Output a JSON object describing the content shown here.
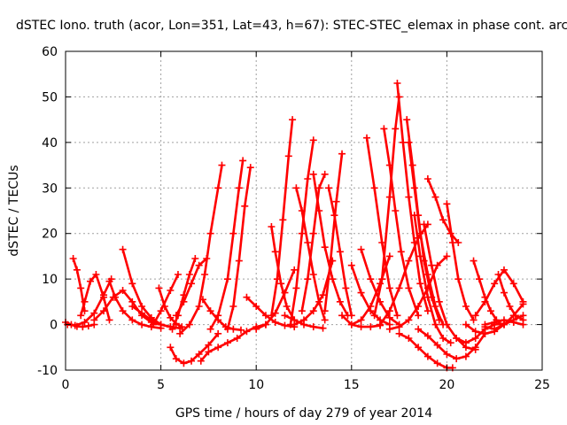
{
  "chart_data": {
    "type": "scatter",
    "title": "dSTEC Iono. truth (acor, Lon=351, Lat=43, h=67): STEC-STEC_elemax in phase cont. arc",
    "xlabel": "GPS time / hours of day 279 of year 2014",
    "ylabel": "dSTEC  / TECUs",
    "xlim": [
      0,
      25
    ],
    "ylim": [
      -10,
      60
    ],
    "xticks": [
      0,
      5,
      10,
      15,
      20,
      25
    ],
    "yticks": [
      -10,
      0,
      10,
      20,
      30,
      40,
      50,
      60
    ],
    "grid": true,
    "marker": "+",
    "color": "#ff0000",
    "series": [
      {
        "x": [
          0.0,
          0.3,
          0.6,
          0.9,
          1.2,
          1.5
        ],
        "y": [
          0.5,
          0.0,
          -0.4,
          -0.5,
          -0.3,
          0.0
        ]
      },
      {
        "x": [
          0.4,
          0.6,
          0.8,
          1.0
        ],
        "y": [
          14.5,
          12.0,
          8.0,
          3.0
        ]
      },
      {
        "x": [
          0.8,
          1.0,
          1.3,
          1.6,
          2.0,
          2.3
        ],
        "y": [
          2.0,
          5.0,
          9.5,
          11.0,
          6.0,
          1.0
        ]
      },
      {
        "x": [
          0.1,
          0.5,
          1.0,
          1.5,
          2.0,
          2.4
        ],
        "y": [
          0.0,
          -0.2,
          0.5,
          2.5,
          6.5,
          10.0
        ]
      },
      {
        "x": [
          1.5,
          2.0,
          2.5,
          3.0,
          3.5,
          4.0,
          4.5,
          5.0
        ],
        "y": [
          1.0,
          3.0,
          6.0,
          7.5,
          5.0,
          2.0,
          0.5,
          0.0
        ]
      },
      {
        "x": [
          2.3,
          2.6,
          3.0,
          3.5,
          4.0,
          4.5,
          5.0
        ],
        "y": [
          9.5,
          6.0,
          3.0,
          1.0,
          0.0,
          -0.5,
          -0.8
        ]
      },
      {
        "x": [
          3.0,
          3.5,
          4.0,
          4.5,
          5.0,
          5.5,
          6.0
        ],
        "y": [
          16.5,
          9.0,
          4.0,
          1.5,
          0.0,
          -0.5,
          -0.8
        ]
      },
      {
        "x": [
          3.5,
          4.0,
          4.5,
          5.0,
          5.5
        ],
        "y": [
          4.0,
          2.5,
          1.0,
          0.0,
          -0.5
        ]
      },
      {
        "x": [
          4.9,
          5.2,
          5.5,
          5.8,
          6.1
        ],
        "y": [
          8.0,
          4.0,
          1.5,
          0.2,
          -0.5
        ]
      },
      {
        "x": [
          4.6,
          5.0,
          5.5,
          5.9
        ],
        "y": [
          0.0,
          3.0,
          7.5,
          11.0
        ]
      },
      {
        "x": [
          5.6,
          5.9,
          6.2,
          6.5,
          6.8
        ],
        "y": [
          -1.0,
          2.0,
          6.5,
          11.0,
          14.5
        ]
      },
      {
        "x": [
          5.5,
          5.8,
          6.2,
          6.6,
          7.0,
          7.5,
          8.0
        ],
        "y": [
          -5.0,
          -7.5,
          -8.5,
          -8.0,
          -6.5,
          -4.5,
          -2.0
        ]
      },
      {
        "x": [
          7.1,
          7.5,
          8.0,
          8.5,
          9.0,
          9.5,
          10.0,
          10.5
        ],
        "y": [
          -8.0,
          -6.0,
          -5.0,
          -4.0,
          -3.0,
          -1.5,
          -0.5,
          0.0
        ]
      },
      {
        "x": [
          6.0,
          6.5,
          7.0,
          7.3,
          7.6,
          8.0,
          8.2
        ],
        "y": [
          -2.0,
          0.0,
          4.0,
          11.0,
          20.0,
          30.0,
          35.0
        ]
      },
      {
        "x": [
          5.8,
          6.2,
          6.6,
          7.0,
          7.4
        ],
        "y": [
          2.0,
          5.0,
          9.0,
          13.0,
          14.5
        ]
      },
      {
        "x": [
          7.2,
          7.6,
          8.0,
          8.4,
          8.8,
          9.2
        ],
        "y": [
          5.5,
          3.0,
          1.0,
          -0.5,
          -1.0,
          -1.2
        ]
      },
      {
        "x": [
          7.6,
          8.0,
          8.5,
          8.8,
          9.1,
          9.3
        ],
        "y": [
          -1.0,
          2.0,
          10.0,
          20.0,
          30.0,
          36.0
        ]
      },
      {
        "x": [
          8.5,
          8.8,
          9.1,
          9.4,
          9.7
        ],
        "y": [
          -1.0,
          4.0,
          14.0,
          26.0,
          34.5
        ]
      },
      {
        "x": [
          9.5,
          10.0,
          10.5,
          11.0,
          11.5,
          12.0
        ],
        "y": [
          6.0,
          4.0,
          2.0,
          0.5,
          -0.2,
          -0.5
        ]
      },
      {
        "x": [
          10.0,
          10.5,
          11.0,
          11.5,
          12.0
        ],
        "y": [
          -1.0,
          0.0,
          2.5,
          7.0,
          12.0
        ]
      },
      {
        "x": [
          10.8,
          11.0,
          11.3,
          11.6,
          12.0
        ],
        "y": [
          21.5,
          16.0,
          9.0,
          4.0,
          1.0
        ]
      },
      {
        "x": [
          10.8,
          11.1,
          11.4,
          11.7,
          11.9
        ],
        "y": [
          2.0,
          10.0,
          23.0,
          37.0,
          45.0
        ]
      },
      {
        "x": [
          11.5,
          12.0,
          12.5,
          13.0,
          13.5
        ],
        "y": [
          2.0,
          1.0,
          0.0,
          -0.5,
          -0.8
        ]
      },
      {
        "x": [
          11.8,
          12.1,
          12.4,
          12.7,
          13.0
        ],
        "y": [
          0.0,
          8.0,
          20.0,
          32.0,
          40.5
        ]
      },
      {
        "x": [
          12.1,
          12.4,
          12.7,
          13.0,
          13.3,
          13.6
        ],
        "y": [
          30.0,
          25.0,
          18.0,
          11.0,
          5.0,
          1.0
        ]
      },
      {
        "x": [
          12.4,
          12.7,
          13.0,
          13.3,
          13.6
        ],
        "y": [
          3.0,
          10.0,
          20.0,
          30.0,
          33.0
        ]
      },
      {
        "x": [
          13.0,
          13.3,
          13.6,
          14.0,
          14.4,
          14.8
        ],
        "y": [
          33.0,
          25.0,
          17.0,
          10.0,
          5.0,
          2.0
        ]
      },
      {
        "x": [
          12.0,
          12.5,
          13.0,
          13.5,
          14.0
        ],
        "y": [
          0.0,
          1.0,
          3.0,
          6.5,
          14.0
        ]
      },
      {
        "x": [
          13.6,
          13.9,
          14.2,
          14.5
        ],
        "y": [
          3.0,
          14.0,
          27.0,
          37.5
        ]
      },
      {
        "x": [
          13.8,
          14.1,
          14.4,
          14.7,
          15.0
        ],
        "y": [
          30.0,
          24.0,
          16.0,
          8.0,
          2.0
        ]
      },
      {
        "x": [
          14.5,
          15.0,
          15.5,
          16.0,
          16.5
        ],
        "y": [
          2.0,
          0.0,
          -0.5,
          -0.5,
          -0.2
        ]
      },
      {
        "x": [
          15.0,
          15.5,
          16.0,
          16.5,
          17.0
        ],
        "y": [
          13.0,
          7.0,
          3.0,
          1.0,
          0.0
        ]
      },
      {
        "x": [
          15.5,
          16.0,
          16.5,
          17.0,
          17.5
        ],
        "y": [
          16.5,
          10.0,
          5.0,
          1.5,
          0.0
        ]
      },
      {
        "x": [
          15.8,
          16.2,
          16.6,
          17.0,
          17.4
        ],
        "y": [
          41.0,
          30.0,
          18.0,
          8.0,
          2.0
        ]
      },
      {
        "x": [
          15.0,
          15.5,
          16.0,
          16.5,
          17.0
        ],
        "y": [
          0.0,
          1.0,
          4.0,
          9.0,
          15.0
        ]
      },
      {
        "x": [
          16.2,
          16.6,
          17.0,
          17.3,
          17.5
        ],
        "y": [
          2.0,
          10.0,
          28.0,
          43.0,
          50.0
        ]
      },
      {
        "x": [
          16.7,
          17.0,
          17.3,
          17.6,
          18.0,
          18.5
        ],
        "y": [
          43.0,
          35.0,
          25.0,
          16.0,
          8.0,
          2.0
        ]
      },
      {
        "x": [
          17.4,
          17.7,
          18.0,
          18.3,
          18.6,
          19.0
        ],
        "y": [
          53.0,
          40.0,
          28.0,
          18.0,
          9.0,
          3.0
        ]
      },
      {
        "x": [
          17.9,
          18.2,
          18.5,
          18.8,
          19.2,
          19.6
        ],
        "y": [
          45.0,
          35.0,
          24.0,
          14.0,
          6.0,
          1.0
        ]
      },
      {
        "x": [
          18.0,
          18.3,
          18.6,
          19.0,
          19.4,
          19.8
        ],
        "y": [
          40.0,
          30.0,
          20.0,
          11.0,
          4.0,
          0.0
        ]
      },
      {
        "x": [
          16.5,
          17.0,
          17.5,
          18.0,
          18.5,
          19.0
        ],
        "y": [
          0.0,
          3.0,
          8.0,
          14.0,
          19.0,
          22.0
        ]
      },
      {
        "x": [
          17.0,
          17.5,
          18.0,
          18.5,
          19.0,
          19.5,
          20.0
        ],
        "y": [
          -1.0,
          -0.5,
          1.0,
          4.0,
          8.0,
          13.0,
          15.0
        ]
      },
      {
        "x": [
          18.3,
          18.6,
          19.0,
          19.4,
          19.8,
          20.2
        ],
        "y": [
          24.0,
          15.0,
          6.0,
          0.0,
          -3.0,
          -4.0
        ]
      },
      {
        "x": [
          18.8,
          19.2,
          19.6,
          20.0,
          20.5,
          21.0,
          21.5
        ],
        "y": [
          22.0,
          13.0,
          5.0,
          0.0,
          -3.0,
          -5.0,
          -5.5
        ]
      },
      {
        "x": [
          19.0,
          19.4,
          19.8,
          20.2,
          20.6
        ],
        "y": [
          32.0,
          28.0,
          23.0,
          20.0,
          18.0
        ]
      },
      {
        "x": [
          17.5,
          18.0,
          18.5,
          19.0,
          19.5,
          20.0,
          20.3
        ],
        "y": [
          -2.0,
          -3.0,
          -5.0,
          -7.0,
          -8.5,
          -9.5,
          -9.5
        ]
      },
      {
        "x": [
          18.5,
          19.0,
          19.5,
          20.0,
          20.5,
          21.0,
          21.5,
          22.0
        ],
        "y": [
          -1.0,
          -2.5,
          -4.5,
          -6.5,
          -7.5,
          -7.0,
          -5.0,
          -2.0
        ]
      },
      {
        "x": [
          20.0,
          20.3,
          20.6,
          21.0,
          21.4
        ],
        "y": [
          26.5,
          18.0,
          10.0,
          4.0,
          1.0
        ]
      },
      {
        "x": [
          20.5,
          21.0,
          21.5,
          22.0,
          22.5,
          23.0
        ],
        "y": [
          -3.0,
          -4.0,
          -3.0,
          -1.0,
          0.0,
          0.2
        ]
      },
      {
        "x": [
          21.4,
          21.7,
          22.0,
          22.3,
          22.6,
          22.8
        ],
        "y": [
          14.0,
          10.0,
          6.0,
          3.0,
          1.0,
          0.0
        ]
      },
      {
        "x": [
          21.0,
          21.5,
          22.0,
          22.5,
          23.0,
          23.5,
          24.0
        ],
        "y": [
          0.0,
          -1.5,
          -2.0,
          -1.5,
          0.0,
          2.0,
          4.5
        ]
      },
      {
        "x": [
          21.5,
          22.0,
          22.5,
          23.0,
          23.5,
          24.0
        ],
        "y": [
          2.0,
          5.0,
          9.0,
          12.0,
          9.0,
          5.0
        ]
      },
      {
        "x": [
          22.7,
          23.0,
          23.3,
          23.6,
          24.0
        ],
        "y": [
          11.0,
          7.0,
          4.0,
          2.0,
          1.0
        ]
      },
      {
        "x": [
          22.0,
          22.5,
          23.0,
          23.5,
          24.0
        ],
        "y": [
          0.0,
          0.5,
          1.0,
          0.5,
          0.0
        ]
      },
      {
        "x": [
          22.0,
          22.5,
          23.0,
          23.5,
          24.0
        ],
        "y": [
          -0.5,
          -1.0,
          0.0,
          1.0,
          2.0
        ]
      }
    ]
  }
}
